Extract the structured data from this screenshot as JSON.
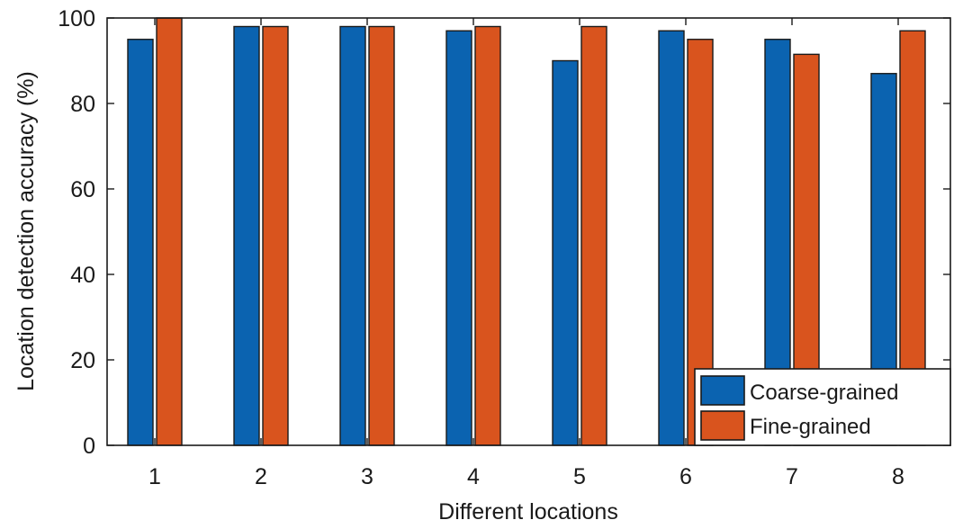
{
  "chart_data": {
    "type": "bar",
    "title": "",
    "xlabel": "Different locations",
    "ylabel": "Location detection accuracy (%)",
    "categories": [
      "1",
      "2",
      "3",
      "4",
      "5",
      "6",
      "7",
      "8"
    ],
    "series": [
      {
        "name": "Coarse-grained",
        "color": "#0b63b0",
        "values": [
          95,
          98,
          98,
          97,
          90,
          97,
          95,
          87
        ]
      },
      {
        "name": "Fine-grained",
        "color": "#d9541e",
        "values": [
          100,
          98,
          98,
          98,
          98,
          95,
          91.5,
          97
        ]
      }
    ],
    "ylim": [
      0,
      100
    ],
    "yticks": [
      "0",
      "20",
      "40",
      "60",
      "80",
      "100"
    ],
    "grid": false,
    "legend_position": "bottom-right"
  }
}
